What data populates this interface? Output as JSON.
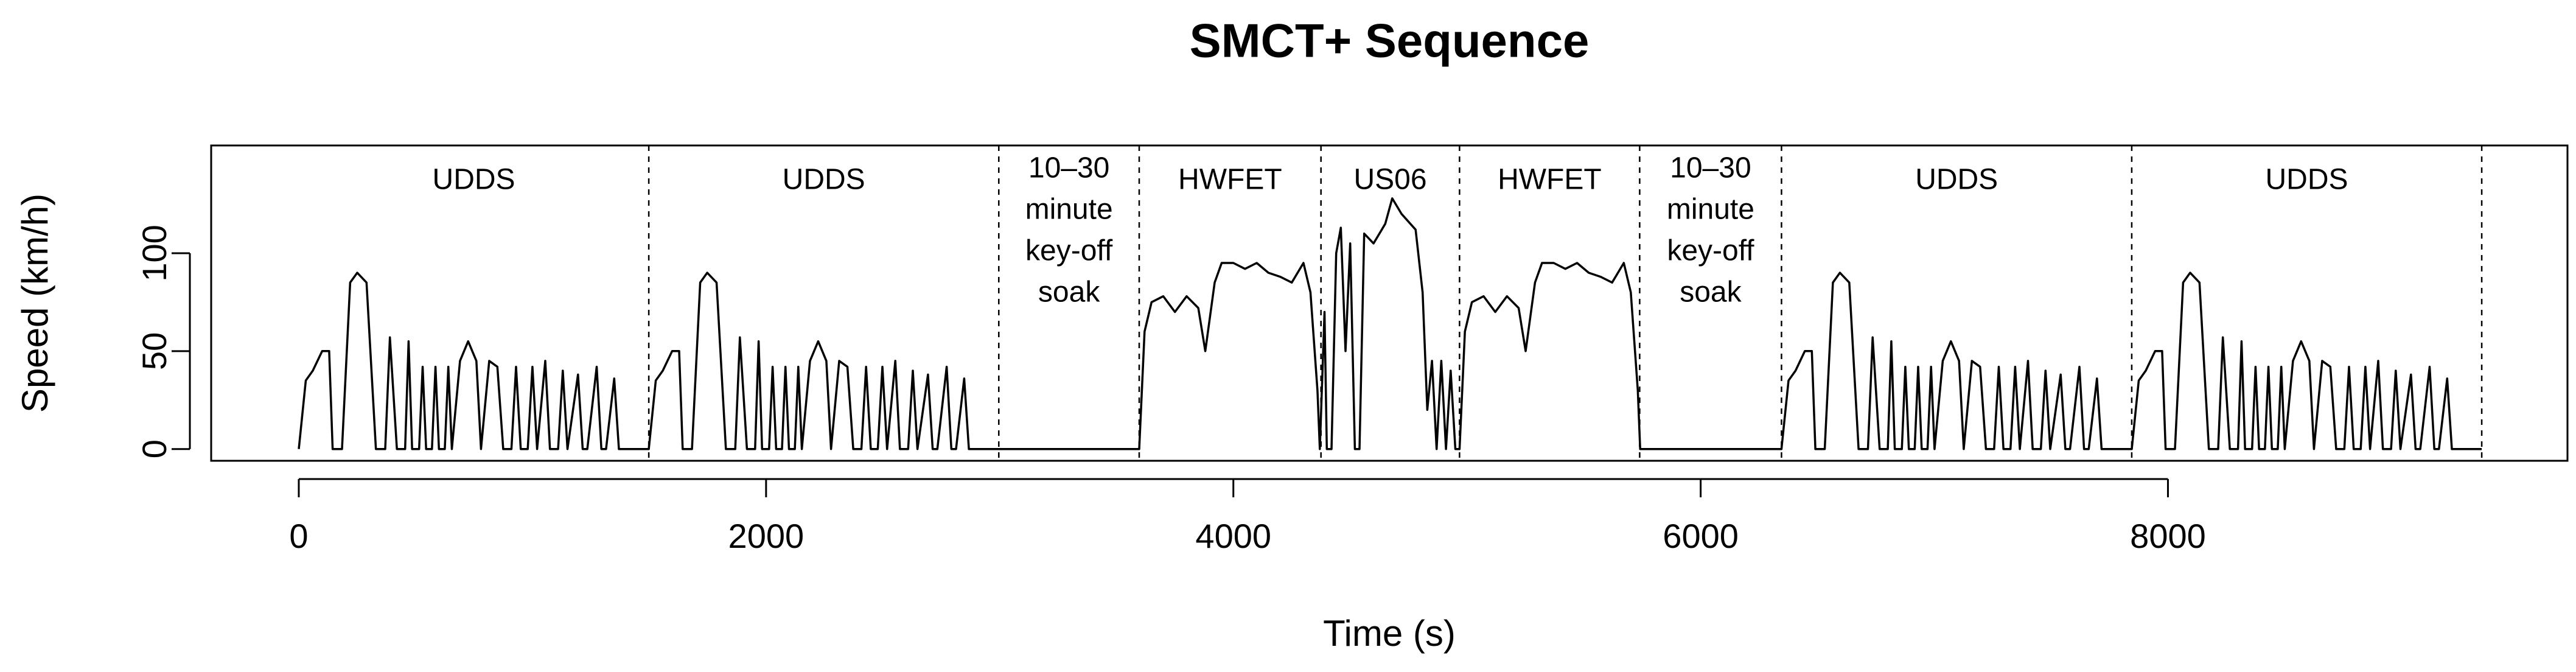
{
  "chart_data": {
    "type": "line",
    "title": "SMCT+ Sequence",
    "x_label": "Time (s)",
    "y_label": "Speed (km/h)",
    "color": "#000000",
    "xlim": [
      -375,
      9710
    ],
    "ylim": [
      -6,
      155
    ],
    "xticks": [
      0,
      2000,
      4000,
      6000,
      8000
    ],
    "yticks": [
      0,
      50,
      100
    ],
    "boundaries": [
      1498,
      2996,
      3597,
      4375,
      4968,
      5739,
      6346,
      7845,
      9343
    ],
    "segment_labels": [
      [
        "UDDS"
      ],
      [
        "UDDS"
      ],
      [
        "10–30",
        "minute",
        "key-off",
        "soak"
      ],
      [
        "HWFET"
      ],
      [
        "US06"
      ],
      [
        "HWFET"
      ],
      [
        "10–30",
        "minute",
        "key-off",
        "soak"
      ],
      [
        "UDDS"
      ],
      [
        "UDDS"
      ]
    ],
    "x": [
      0,
      30,
      60,
      100,
      130,
      145,
      185,
      220,
      250,
      290,
      330,
      370,
      390,
      420,
      455,
      470,
      485,
      515,
      530,
      545,
      570,
      585,
      600,
      625,
      640,
      655,
      690,
      725,
      760,
      780,
      815,
      850,
      875,
      910,
      930,
      950,
      980,
      1000,
      1020,
      1055,
      1075,
      1110,
      1130,
      1150,
      1195,
      1215,
      1235,
      1275,
      1295,
      1315,
      1350,
      1370,
      1498,
      1528,
      1558,
      1598,
      1628,
      1643,
      1683,
      1718,
      1748,
      1788,
      1828,
      1868,
      1888,
      1918,
      1953,
      1968,
      1983,
      2013,
      2028,
      2043,
      2068,
      2083,
      2098,
      2123,
      2138,
      2153,
      2188,
      2223,
      2258,
      2278,
      2313,
      2348,
      2373,
      2408,
      2428,
      2448,
      2478,
      2498,
      2518,
      2553,
      2573,
      2608,
      2628,
      2648,
      2693,
      2713,
      2733,
      2773,
      2793,
      2813,
      2848,
      2868,
      3597,
      3620,
      3650,
      3700,
      3750,
      3800,
      3850,
      3880,
      3920,
      3950,
      4000,
      4050,
      4100,
      4150,
      4200,
      4250,
      4300,
      4330,
      4360,
      4370,
      4390,
      4400,
      4420,
      4440,
      4460,
      4480,
      4500,
      4520,
      4540,
      4560,
      4600,
      4650,
      4680,
      4720,
      4780,
      4810,
      4830,
      4850,
      4870,
      4890,
      4910,
      4930,
      4950,
      4968,
      4991,
      5021,
      5071,
      5121,
      5171,
      5221,
      5251,
      5291,
      5321,
      5371,
      5421,
      5471,
      5521,
      5571,
      5621,
      5671,
      5701,
      5731,
      5741,
      6346,
      6376,
      6406,
      6446,
      6476,
      6491,
      6531,
      6566,
      6596,
      6636,
      6676,
      6716,
      6736,
      6766,
      6801,
      6816,
      6831,
      6861,
      6876,
      6891,
      6916,
      6931,
      6946,
      6971,
      6986,
      7001,
      7036,
      7071,
      7106,
      7126,
      7161,
      7196,
      7221,
      7256,
      7276,
      7296,
      7326,
      7346,
      7366,
      7401,
      7421,
      7456,
      7476,
      7496,
      7541,
      7561,
      7581,
      7621,
      7641,
      7661,
      7696,
      7716,
      7845,
      7875,
      7905,
      7945,
      7975,
      7990,
      8030,
      8065,
      8095,
      8135,
      8175,
      8215,
      8235,
      8265,
      8300,
      8315,
      8330,
      8360,
      8375,
      8390,
      8415,
      8430,
      8445,
      8470,
      8485,
      8500,
      8535,
      8570,
      8605,
      8625,
      8660,
      8695,
      8720,
      8755,
      8775,
      8795,
      8825,
      8845,
      8865,
      8900,
      8920,
      8955,
      8975,
      8995,
      9040,
      9060,
      9080,
      9120,
      9140,
      9160,
      9195,
      9215,
      9343
    ],
    "values": [
      0,
      35,
      40,
      50,
      50,
      0,
      0,
      85,
      90,
      85,
      0,
      0,
      57,
      0,
      0,
      55,
      0,
      0,
      42,
      0,
      0,
      42,
      0,
      0,
      42,
      0,
      45,
      55,
      45,
      0,
      45,
      42,
      0,
      0,
      42,
      0,
      0,
      42,
      0,
      45,
      0,
      0,
      40,
      0,
      38,
      0,
      0,
      42,
      0,
      0,
      36,
      0,
      0,
      35,
      40,
      50,
      50,
      0,
      0,
      85,
      90,
      85,
      0,
      0,
      57,
      0,
      0,
      55,
      0,
      0,
      42,
      0,
      0,
      42,
      0,
      0,
      42,
      0,
      45,
      55,
      45,
      0,
      45,
      42,
      0,
      0,
      42,
      0,
      0,
      42,
      0,
      45,
      0,
      0,
      40,
      0,
      38,
      0,
      0,
      42,
      0,
      0,
      36,
      0,
      0,
      60,
      75,
      78,
      70,
      78,
      72,
      50,
      85,
      95,
      95,
      92,
      95,
      90,
      88,
      85,
      95,
      80,
      30,
      0,
      70,
      0,
      0,
      100,
      113,
      50,
      105,
      0,
      0,
      110,
      105,
      115,
      128,
      120,
      112,
      80,
      20,
      45,
      0,
      45,
      0,
      40,
      0,
      0,
      60,
      75,
      78,
      70,
      78,
      72,
      50,
      85,
      95,
      95,
      92,
      95,
      90,
      88,
      85,
      95,
      80,
      30,
      0,
      0,
      35,
      40,
      50,
      50,
      0,
      0,
      85,
      90,
      85,
      0,
      0,
      57,
      0,
      0,
      55,
      0,
      0,
      42,
      0,
      0,
      42,
      0,
      0,
      42,
      0,
      45,
      55,
      45,
      0,
      45,
      42,
      0,
      0,
      42,
      0,
      0,
      42,
      0,
      45,
      0,
      0,
      40,
      0,
      38,
      0,
      0,
      42,
      0,
      0,
      36,
      0,
      0,
      35,
      40,
      50,
      50,
      0,
      0,
      85,
      90,
      85,
      0,
      0,
      57,
      0,
      0,
      55,
      0,
      0,
      42,
      0,
      0,
      42,
      0,
      0,
      42,
      0,
      45,
      55,
      45,
      0,
      45,
      42,
      0,
      0,
      42,
      0,
      0,
      42,
      0,
      45,
      0,
      0,
      40,
      0,
      38,
      0,
      0,
      42,
      0,
      0,
      36,
      0,
      0
    ]
  }
}
